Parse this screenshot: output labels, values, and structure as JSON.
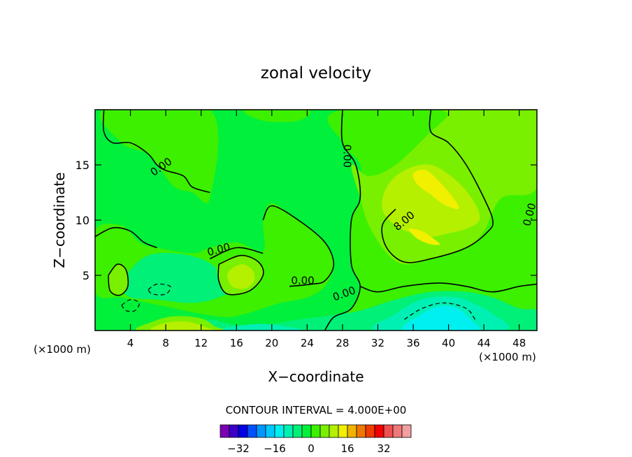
{
  "chart_data": {
    "type": "heatmap",
    "title": "zonal velocity",
    "xlabel": "X−coordinate",
    "ylabel": "Z−coordinate",
    "x_unit_left": "(×1000 m)",
    "x_unit_right": "(×1000 m)",
    "xlim": [
      0,
      50
    ],
    "ylim": [
      0,
      20
    ],
    "xticks": [
      {
        "v": 4,
        "label": "4"
      },
      {
        "v": 8,
        "label": "8"
      },
      {
        "v": 12,
        "label": "12"
      },
      {
        "v": 16,
        "label": "16"
      },
      {
        "v": 20,
        "label": "20"
      },
      {
        "v": 24,
        "label": "24"
      },
      {
        "v": 28,
        "label": "28"
      },
      {
        "v": 32,
        "label": "32"
      },
      {
        "v": 36,
        "label": "36"
      },
      {
        "v": 40,
        "label": "40"
      },
      {
        "v": 44,
        "label": "44"
      },
      {
        "v": 48,
        "label": "48"
      }
    ],
    "yticks": [
      {
        "v": 5,
        "label": "5"
      },
      {
        "v": 10,
        "label": "10"
      },
      {
        "v": 15,
        "label": "15"
      }
    ],
    "contour_interval_text": "CONTOUR INTERVAL = 4.000E+00",
    "contour_labels": [
      {
        "x": 7.5,
        "y": 14.8,
        "label": "0.00",
        "rotate": -35
      },
      {
        "x": 28.5,
        "y": 15.8,
        "label": "0.00",
        "rotate": 90
      },
      {
        "x": 35.0,
        "y": 9.9,
        "label": "8.00",
        "rotate": -40
      },
      {
        "x": 49.2,
        "y": 10.5,
        "label": "0.00",
        "rotate": -75
      },
      {
        "x": 14.0,
        "y": 7.3,
        "label": "0.00",
        "rotate": -15
      },
      {
        "x": 23.5,
        "y": 4.5,
        "label": "0.00",
        "rotate": 0
      },
      {
        "x": 28.2,
        "y": 3.3,
        "label": "0.00",
        "rotate": -20
      }
    ],
    "colorbar": {
      "colors": [
        "#7a00b4",
        "#3c00c8",
        "#0000e6",
        "#0050ff",
        "#0096ff",
        "#00c8ff",
        "#00f0f0",
        "#00f0b4",
        "#00f078",
        "#00f03c",
        "#3cf000",
        "#78f000",
        "#b4f000",
        "#f0f000",
        "#f0b400",
        "#f07800",
        "#f03c00",
        "#f00000",
        "#f05050",
        "#f07878",
        "#f0a0a0"
      ],
      "ticks": [
        {
          "index": 2,
          "label": "−32"
        },
        {
          "index": 6,
          "label": "−16"
        },
        {
          "index": 10,
          "label": "0"
        },
        {
          "index": 14,
          "label": "16"
        },
        {
          "index": 18,
          "label": "32"
        }
      ]
    },
    "regions": [
      {
        "color": "#00f03c",
        "points": [
          [
            0,
            0
          ],
          [
            50,
            0
          ],
          [
            50,
            20
          ],
          [
            0,
            20
          ]
        ]
      },
      {
        "color": "#3cf000",
        "points": [
          [
            1,
            20
          ],
          [
            3,
            17
          ],
          [
            6,
            16
          ],
          [
            7.5,
            14.5
          ],
          [
            9,
            13
          ],
          [
            11,
            12.5
          ],
          [
            13,
            12
          ],
          [
            13,
            20
          ]
        ]
      },
      {
        "color": "#3cf000",
        "points": [
          [
            17,
            20
          ],
          [
            19,
            19
          ],
          [
            23,
            19
          ],
          [
            24,
            20
          ]
        ]
      },
      {
        "color": "#3cf000",
        "points": [
          [
            28,
            20
          ],
          [
            28,
            17
          ],
          [
            30,
            15
          ],
          [
            30,
            12
          ],
          [
            29,
            10
          ],
          [
            29,
            6
          ],
          [
            30,
            4
          ],
          [
            29,
            2
          ],
          [
            27,
            1
          ],
          [
            26,
            0
          ],
          [
            50,
            0
          ],
          [
            50,
            20
          ]
        ]
      },
      {
        "color": "#3cf000",
        "points": [
          [
            0,
            9
          ],
          [
            3,
            9.5
          ],
          [
            5,
            8
          ],
          [
            7,
            7.5
          ],
          [
            11,
            7
          ],
          [
            13,
            7.5
          ],
          [
            16,
            8
          ],
          [
            19,
            7.2
          ],
          [
            19,
            10
          ],
          [
            20,
            11.5
          ],
          [
            23,
            10
          ],
          [
            26,
            8
          ],
          [
            27,
            6
          ],
          [
            26,
            4
          ],
          [
            24,
            3
          ],
          [
            21,
            2.5
          ],
          [
            19,
            2
          ],
          [
            17,
            1.5
          ],
          [
            15,
            1.2
          ],
          [
            12,
            1.5
          ],
          [
            9,
            2
          ],
          [
            6,
            2.5
          ],
          [
            3,
            3
          ],
          [
            0,
            3.5
          ]
        ]
      },
      {
        "color": "#00f078",
        "points": [
          [
            4,
            3
          ],
          [
            7,
            2.8
          ],
          [
            11,
            2.5
          ],
          [
            14,
            3
          ],
          [
            16,
            4
          ],
          [
            14,
            5.5
          ],
          [
            12,
            6.5
          ],
          [
            9,
            7
          ],
          [
            6,
            6.8
          ],
          [
            4,
            5.5
          ],
          [
            3,
            4
          ]
        ]
      },
      {
        "color": "#00f078",
        "points": [
          [
            13,
            1
          ],
          [
            16,
            0.5
          ],
          [
            20,
            0.6
          ],
          [
            23,
            1
          ],
          [
            27,
            1.4
          ],
          [
            30,
            1.8
          ],
          [
            34,
            2.8
          ],
          [
            38,
            3.5
          ],
          [
            42,
            3.5
          ],
          [
            45,
            3
          ],
          [
            48,
            2
          ],
          [
            50,
            1.8
          ],
          [
            50,
            0
          ],
          [
            13,
            0
          ]
        ]
      },
      {
        "color": "#00f0b4",
        "points": [
          [
            32,
            0
          ],
          [
            34,
            1.5
          ],
          [
            36,
            2.5
          ],
          [
            38,
            3
          ],
          [
            41,
            3
          ],
          [
            43,
            2.4
          ],
          [
            45,
            1.5
          ],
          [
            46,
            0
          ]
        ]
      },
      {
        "color": "#00f0b4",
        "points": [
          [
            14,
            0
          ],
          [
            16,
            0.4
          ],
          [
            19,
            0.6
          ],
          [
            22,
            0.3
          ],
          [
            23,
            0
          ]
        ]
      },
      {
        "color": "#00f0f0",
        "points": [
          [
            35,
            0
          ],
          [
            37,
            1.5
          ],
          [
            39,
            2.2
          ],
          [
            41,
            2
          ],
          [
            42.5,
            1
          ],
          [
            43,
            0
          ]
        ]
      },
      {
        "color": "#78f000",
        "points": [
          [
            29,
            15
          ],
          [
            31,
            14
          ],
          [
            34,
            15
          ],
          [
            38,
            18
          ],
          [
            40,
            19.5
          ],
          [
            40,
            20
          ],
          [
            50,
            20
          ],
          [
            50,
            13
          ],
          [
            46,
            12
          ],
          [
            44,
            9
          ],
          [
            42,
            7.5
          ],
          [
            38,
            6.5
          ],
          [
            35,
            6
          ],
          [
            33,
            7
          ],
          [
            31,
            9.5
          ],
          [
            30,
            12
          ]
        ]
      },
      {
        "color": "#78f000",
        "points": [
          [
            14,
            6
          ],
          [
            16.5,
            6.8
          ],
          [
            18.5,
            6.2
          ],
          [
            19,
            5
          ],
          [
            17.5,
            3.6
          ],
          [
            15,
            3.3
          ],
          [
            14,
            4.5
          ]
        ]
      },
      {
        "color": "#78f000",
        "points": [
          [
            1.5,
            5
          ],
          [
            2.5,
            6
          ],
          [
            3.5,
            5.5
          ],
          [
            3.7,
            4
          ],
          [
            2.8,
            3.2
          ],
          [
            1.7,
            3.6
          ]
        ]
      },
      {
        "color": "#78f000",
        "points": [
          [
            5,
            0
          ],
          [
            6.5,
            0.8
          ],
          [
            9,
            1.3
          ],
          [
            12,
            1.1
          ],
          [
            13.5,
            0.4
          ],
          [
            14,
            0
          ]
        ]
      },
      {
        "color": "#b4f000",
        "points": [
          [
            33,
            13
          ],
          [
            35,
            14.5
          ],
          [
            38,
            15
          ],
          [
            41,
            13.5
          ],
          [
            43,
            11.5
          ],
          [
            43.5,
            10
          ],
          [
            42,
            9.2
          ],
          [
            40,
            8.8
          ],
          [
            38,
            8.5
          ],
          [
            36,
            8.8
          ],
          [
            34,
            9.5
          ],
          [
            32.5,
            11
          ]
        ]
      },
      {
        "color": "#b4f000",
        "points": [
          [
            15,
            5.2
          ],
          [
            16.5,
            6
          ],
          [
            17.8,
            5.5
          ],
          [
            18,
            4.5
          ],
          [
            17,
            3.8
          ],
          [
            15.5,
            4
          ]
        ]
      },
      {
        "color": "#b4f000",
        "points": [
          [
            6.5,
            0
          ],
          [
            8,
            0.7
          ],
          [
            10.5,
            0.8
          ],
          [
            12.5,
            0.3
          ],
          [
            13,
            0
          ]
        ]
      },
      {
        "color": "#f0f000",
        "points": [
          [
            36,
            14.2
          ],
          [
            37.5,
            14.5
          ],
          [
            39.5,
            13
          ],
          [
            41,
            11.5
          ],
          [
            41,
            11
          ],
          [
            39.5,
            11.4
          ],
          [
            38,
            12.3
          ],
          [
            36.5,
            13.2
          ]
        ]
      },
      {
        "color": "#f0f000",
        "points": [
          [
            35.5,
            9.2
          ],
          [
            37,
            9
          ],
          [
            38.5,
            8.2
          ],
          [
            39,
            7.8
          ],
          [
            38,
            7.8
          ],
          [
            36.5,
            8.3
          ]
        ]
      }
    ],
    "contours": [
      {
        "dash": false,
        "points": [
          [
            1,
            20
          ],
          [
            1,
            18
          ],
          [
            2,
            17
          ],
          [
            4,
            17
          ],
          [
            6,
            16
          ],
          [
            7,
            15
          ],
          [
            8,
            14.5
          ],
          [
            10,
            14
          ],
          [
            11,
            13
          ],
          [
            13,
            12.5
          ]
        ]
      },
      {
        "dash": false,
        "points": [
          [
            28,
            20
          ],
          [
            28,
            17
          ],
          [
            29.5,
            15
          ],
          [
            30,
            12
          ],
          [
            29,
            10
          ],
          [
            29,
            6
          ],
          [
            30,
            4
          ],
          [
            29,
            2
          ],
          [
            27,
            1.2
          ],
          [
            26,
            0
          ]
        ]
      },
      {
        "dash": false,
        "points": [
          [
            38,
            20
          ],
          [
            38,
            18
          ],
          [
            40,
            17
          ],
          [
            42,
            15
          ],
          [
            44,
            12
          ],
          [
            45,
            10
          ],
          [
            44.5,
            9
          ],
          [
            42,
            7.5
          ],
          [
            38,
            6.5
          ],
          [
            35,
            6.2
          ],
          [
            33,
            7.5
          ],
          [
            32.5,
            9.5
          ],
          [
            34,
            11
          ]
        ]
      },
      {
        "dash": false,
        "points": [
          [
            0,
            8.5
          ],
          [
            2,
            9.3
          ],
          [
            4,
            9
          ],
          [
            5.5,
            8
          ],
          [
            7,
            7.5
          ]
        ]
      },
      {
        "dash": false,
        "points": [
          [
            13,
            6.5
          ],
          [
            16,
            7.5
          ],
          [
            19,
            7
          ]
        ]
      },
      {
        "dash": false,
        "points": [
          [
            19,
            10
          ],
          [
            20,
            11.3
          ],
          [
            23,
            10
          ],
          [
            26,
            8
          ],
          [
            27,
            6
          ],
          [
            26,
            4.5
          ],
          [
            24.5,
            4.2
          ],
          [
            22,
            4
          ]
        ]
      },
      {
        "dash": false,
        "points": [
          [
            14,
            6
          ],
          [
            16.5,
            6.8
          ],
          [
            18.5,
            6.2
          ],
          [
            19,
            5
          ],
          [
            17.5,
            3.6
          ],
          [
            15,
            3.3
          ],
          [
            14,
            4.5
          ],
          [
            14,
            6
          ]
        ]
      },
      {
        "dash": false,
        "points": [
          [
            1.5,
            5
          ],
          [
            2.5,
            6
          ],
          [
            3.5,
            5.5
          ],
          [
            3.7,
            4
          ],
          [
            2.8,
            3.2
          ],
          [
            1.7,
            3.6
          ],
          [
            1.5,
            5
          ]
        ]
      },
      {
        "dash": false,
        "points": [
          [
            30,
            4
          ],
          [
            32,
            3.5
          ],
          [
            35,
            4
          ],
          [
            39,
            4.3
          ],
          [
            42,
            4
          ],
          [
            45,
            3.5
          ],
          [
            48,
            4
          ],
          [
            50,
            4.2
          ]
        ]
      },
      {
        "dash": true,
        "points": [
          [
            35,
            1
          ],
          [
            37,
            2
          ],
          [
            39.5,
            2.5
          ],
          [
            42,
            2
          ],
          [
            43,
            1
          ]
        ]
      },
      {
        "dash": true,
        "points": [
          [
            6,
            3.7
          ],
          [
            7,
            4.2
          ],
          [
            8.5,
            4
          ],
          [
            8,
            3.3
          ],
          [
            6.5,
            3.3
          ],
          [
            6,
            3.7
          ]
        ]
      },
      {
        "dash": true,
        "points": [
          [
            3,
            2.3
          ],
          [
            4,
            2.8
          ],
          [
            5,
            2.5
          ],
          [
            4.5,
            1.8
          ],
          [
            3.5,
            1.8
          ],
          [
            3,
            2.3
          ]
        ]
      }
    ]
  }
}
